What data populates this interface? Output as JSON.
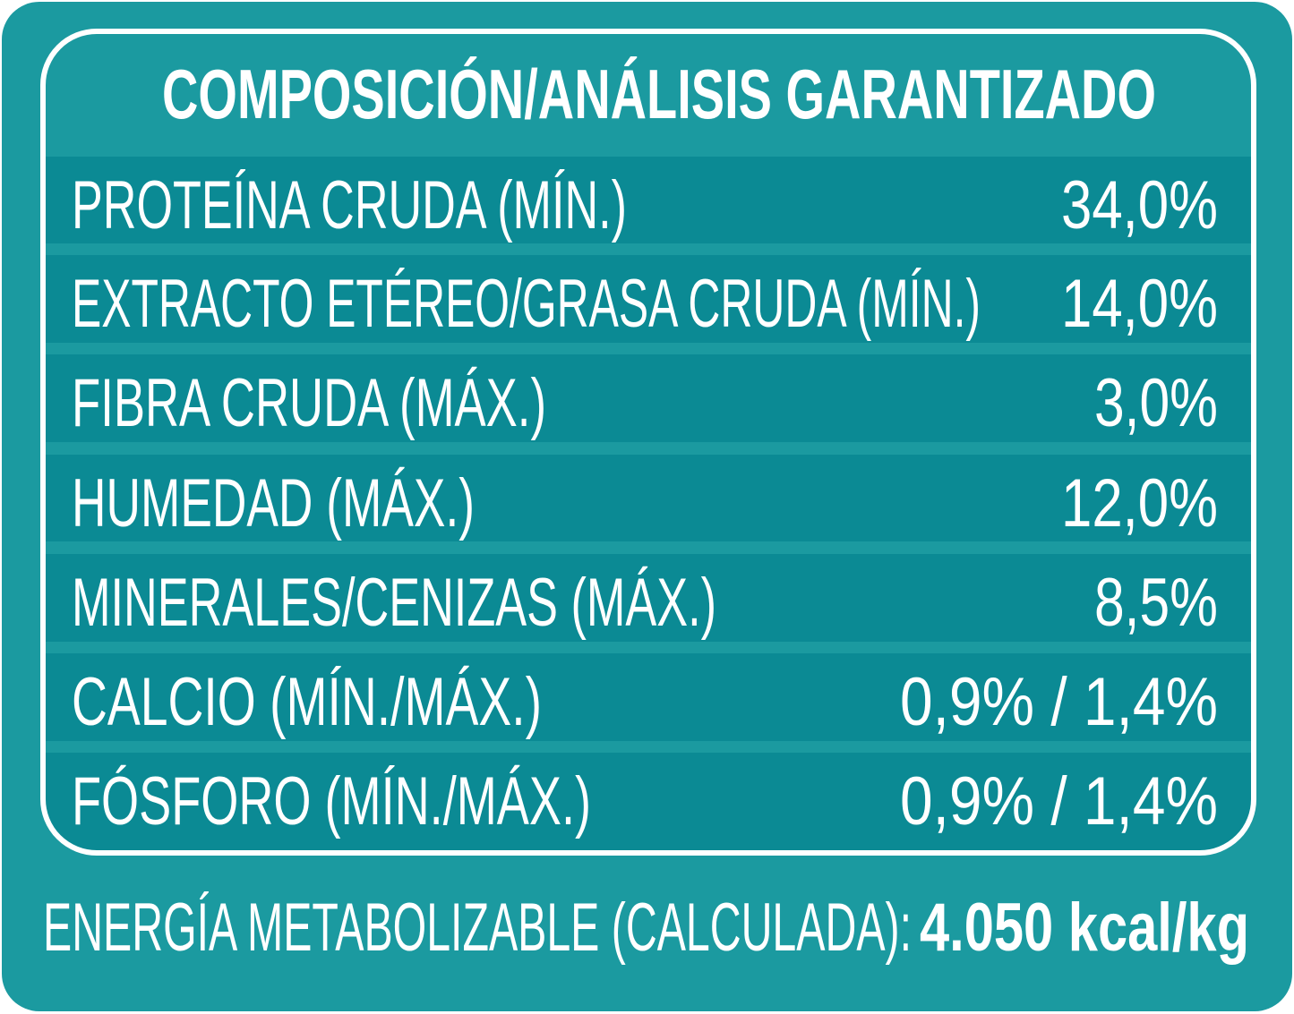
{
  "header": {
    "title": "COMPOSICIÓN/ANÁLISIS GARANTIZADO"
  },
  "rows": [
    {
      "label": "PROTEÍNA CRUDA (MÍN.)",
      "value": "34,0%"
    },
    {
      "label": "EXTRACTO ETÉREO/GRASA CRUDA (MÍN.)",
      "value": "14,0%"
    },
    {
      "label": "FIBRA CRUDA (MÁX.)",
      "value": "3,0%"
    },
    {
      "label": "HUMEDAD (MÁX.)",
      "value": "12,0%"
    },
    {
      "label": "MINERALES/CENIZAS (MÁX.)",
      "value": "8,5%"
    },
    {
      "label": "CALCIO (MÍN./MÁX.)",
      "value": "0,9% / 1,4%"
    },
    {
      "label": "FÓSFORO (MÍN./MÁX.)",
      "value": "0,9% / 1,4%"
    }
  ],
  "footer": {
    "label": "ENERGÍA METABOLIZABLE (CALCULADA):",
    "value": "4.050 kcal/kg"
  }
}
